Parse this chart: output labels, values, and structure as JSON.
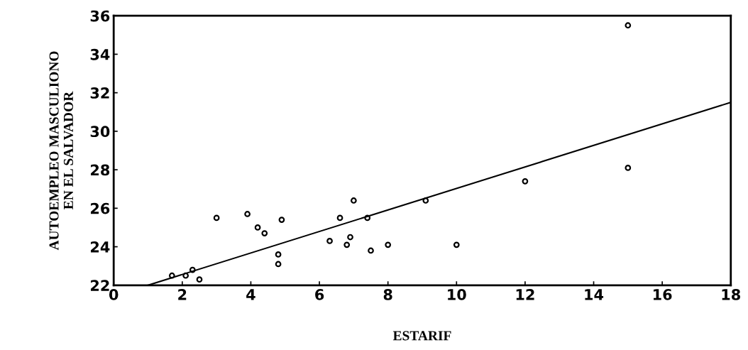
{
  "chart_data": {
    "type": "scatter",
    "xlabel": "ESTARIF",
    "ylabel": "AUTOEMPLEO MASCULIONO\nEN EL SALVADOR",
    "xlim": [
      0,
      18
    ],
    "ylim": [
      22,
      36
    ],
    "xticks": [
      0,
      2,
      4,
      6,
      8,
      10,
      12,
      14,
      16,
      18
    ],
    "yticks": [
      22,
      24,
      26,
      28,
      30,
      32,
      34,
      36
    ],
    "grid": false,
    "marker": "circle",
    "series": [
      {
        "color": "#000000",
        "x": [
          1.7,
          2.1,
          2.3,
          2.5,
          3.0,
          3.9,
          4.2,
          4.4,
          4.8,
          4.8,
          4.9,
          6.3,
          6.6,
          6.8,
          6.9,
          7.0,
          7.4,
          7.5,
          8.0,
          9.1,
          10.0,
          12.0,
          15.0,
          15.0
        ],
        "values": [
          22.5,
          22.5,
          22.8,
          22.3,
          25.5,
          25.7,
          25.0,
          24.7,
          23.6,
          23.1,
          25.4,
          24.3,
          25.5,
          24.1,
          24.5,
          26.4,
          25.5,
          23.8,
          24.1,
          26.4,
          24.1,
          27.4,
          35.5,
          28.1
        ]
      },
      {
        "type": "line",
        "color": "#000000",
        "x": [
          1,
          18
        ],
        "values": [
          22,
          31.5
        ],
        "marker": "none"
      }
    ]
  }
}
